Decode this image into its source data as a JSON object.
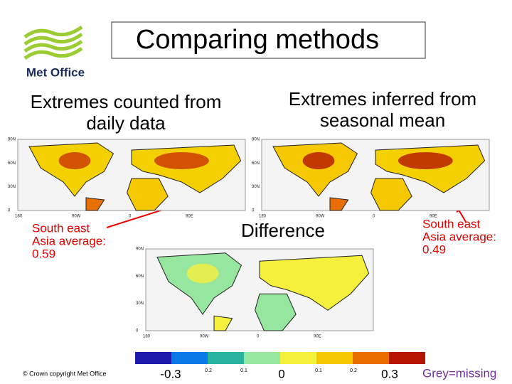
{
  "logo": {
    "text": "Met Office"
  },
  "title": "Comparing methods",
  "panels": [
    {
      "heading": [
        "Extremes counted from",
        "daily data"
      ],
      "note": [
        "South east",
        "Asia average:",
        "0.59"
      ]
    },
    {
      "heading": [
        "Extremes inferred from",
        "seasonal mean"
      ],
      "note": [
        "South east",
        "Asia average:",
        "0.49"
      ]
    }
  ],
  "difference": {
    "heading": "Difference"
  },
  "map_axes": {
    "lat": [
      "90N",
      "60N",
      "30N",
      "0"
    ],
    "lon": [
      "180",
      "90W",
      "0",
      "90E"
    ]
  },
  "colorbar": {
    "labels": [
      "-0.3",
      "0.2",
      "0.1",
      "0",
      "0.1",
      "0.2",
      "0.3"
    ],
    "colors": [
      "#1c1ca8",
      "#0a78e6",
      "#28b4a0",
      "#96e6a0",
      "#f5f03c",
      "#f5c800",
      "#e86e00",
      "#b41400"
    ]
  },
  "footer": {
    "copyright": "© Crown copyright   Met Office",
    "missing": "Grey=missing"
  }
}
